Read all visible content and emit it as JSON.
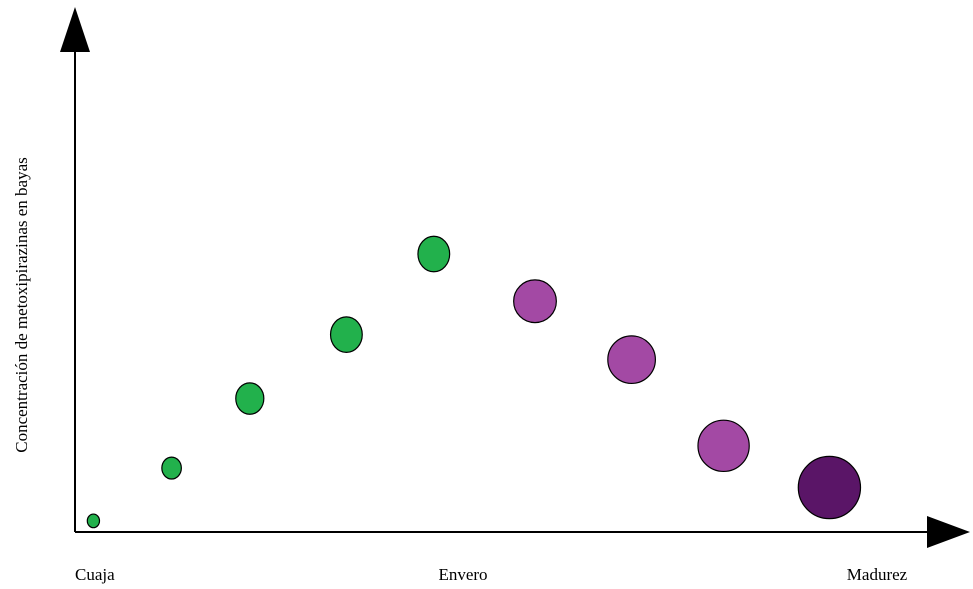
{
  "chart_data": {
    "type": "scatter",
    "title": "",
    "xlabel": "",
    "ylabel": "Concentración de metoxipirazinas en bayas",
    "x_tick_labels": [
      {
        "position": 0,
        "label": "Cuaja"
      },
      {
        "position": 4,
        "label": "Envero"
      },
      {
        "position": 8.5,
        "label": "Madurez"
      }
    ],
    "grid": false,
    "legend": "none",
    "points": [
      {
        "x": 0.2,
        "y": 0.04,
        "size": 1.0,
        "color": "#22b14c"
      },
      {
        "x": 1.05,
        "y": 0.23,
        "size": 1.6,
        "color": "#22b14c"
      },
      {
        "x": 1.9,
        "y": 0.48,
        "size": 2.3,
        "color": "#22b14c"
      },
      {
        "x": 2.95,
        "y": 0.71,
        "size": 2.6,
        "color": "#22b14c"
      },
      {
        "x": 3.9,
        "y": 1.0,
        "size": 2.6,
        "color": "#22b14c"
      },
      {
        "x": 5.0,
        "y": 0.83,
        "size": 3.5,
        "color": "#a349a4"
      },
      {
        "x": 6.05,
        "y": 0.62,
        "size": 3.9,
        "color": "#a349a4"
      },
      {
        "x": 7.05,
        "y": 0.31,
        "size": 4.2,
        "color": "#a349a4"
      },
      {
        "x": 8.2,
        "y": 0.16,
        "size": 5.1,
        "color": "#5a1567"
      }
    ],
    "xlim": [
      0,
      9.3
    ],
    "ylim": [
      0,
      1.43
    ]
  }
}
